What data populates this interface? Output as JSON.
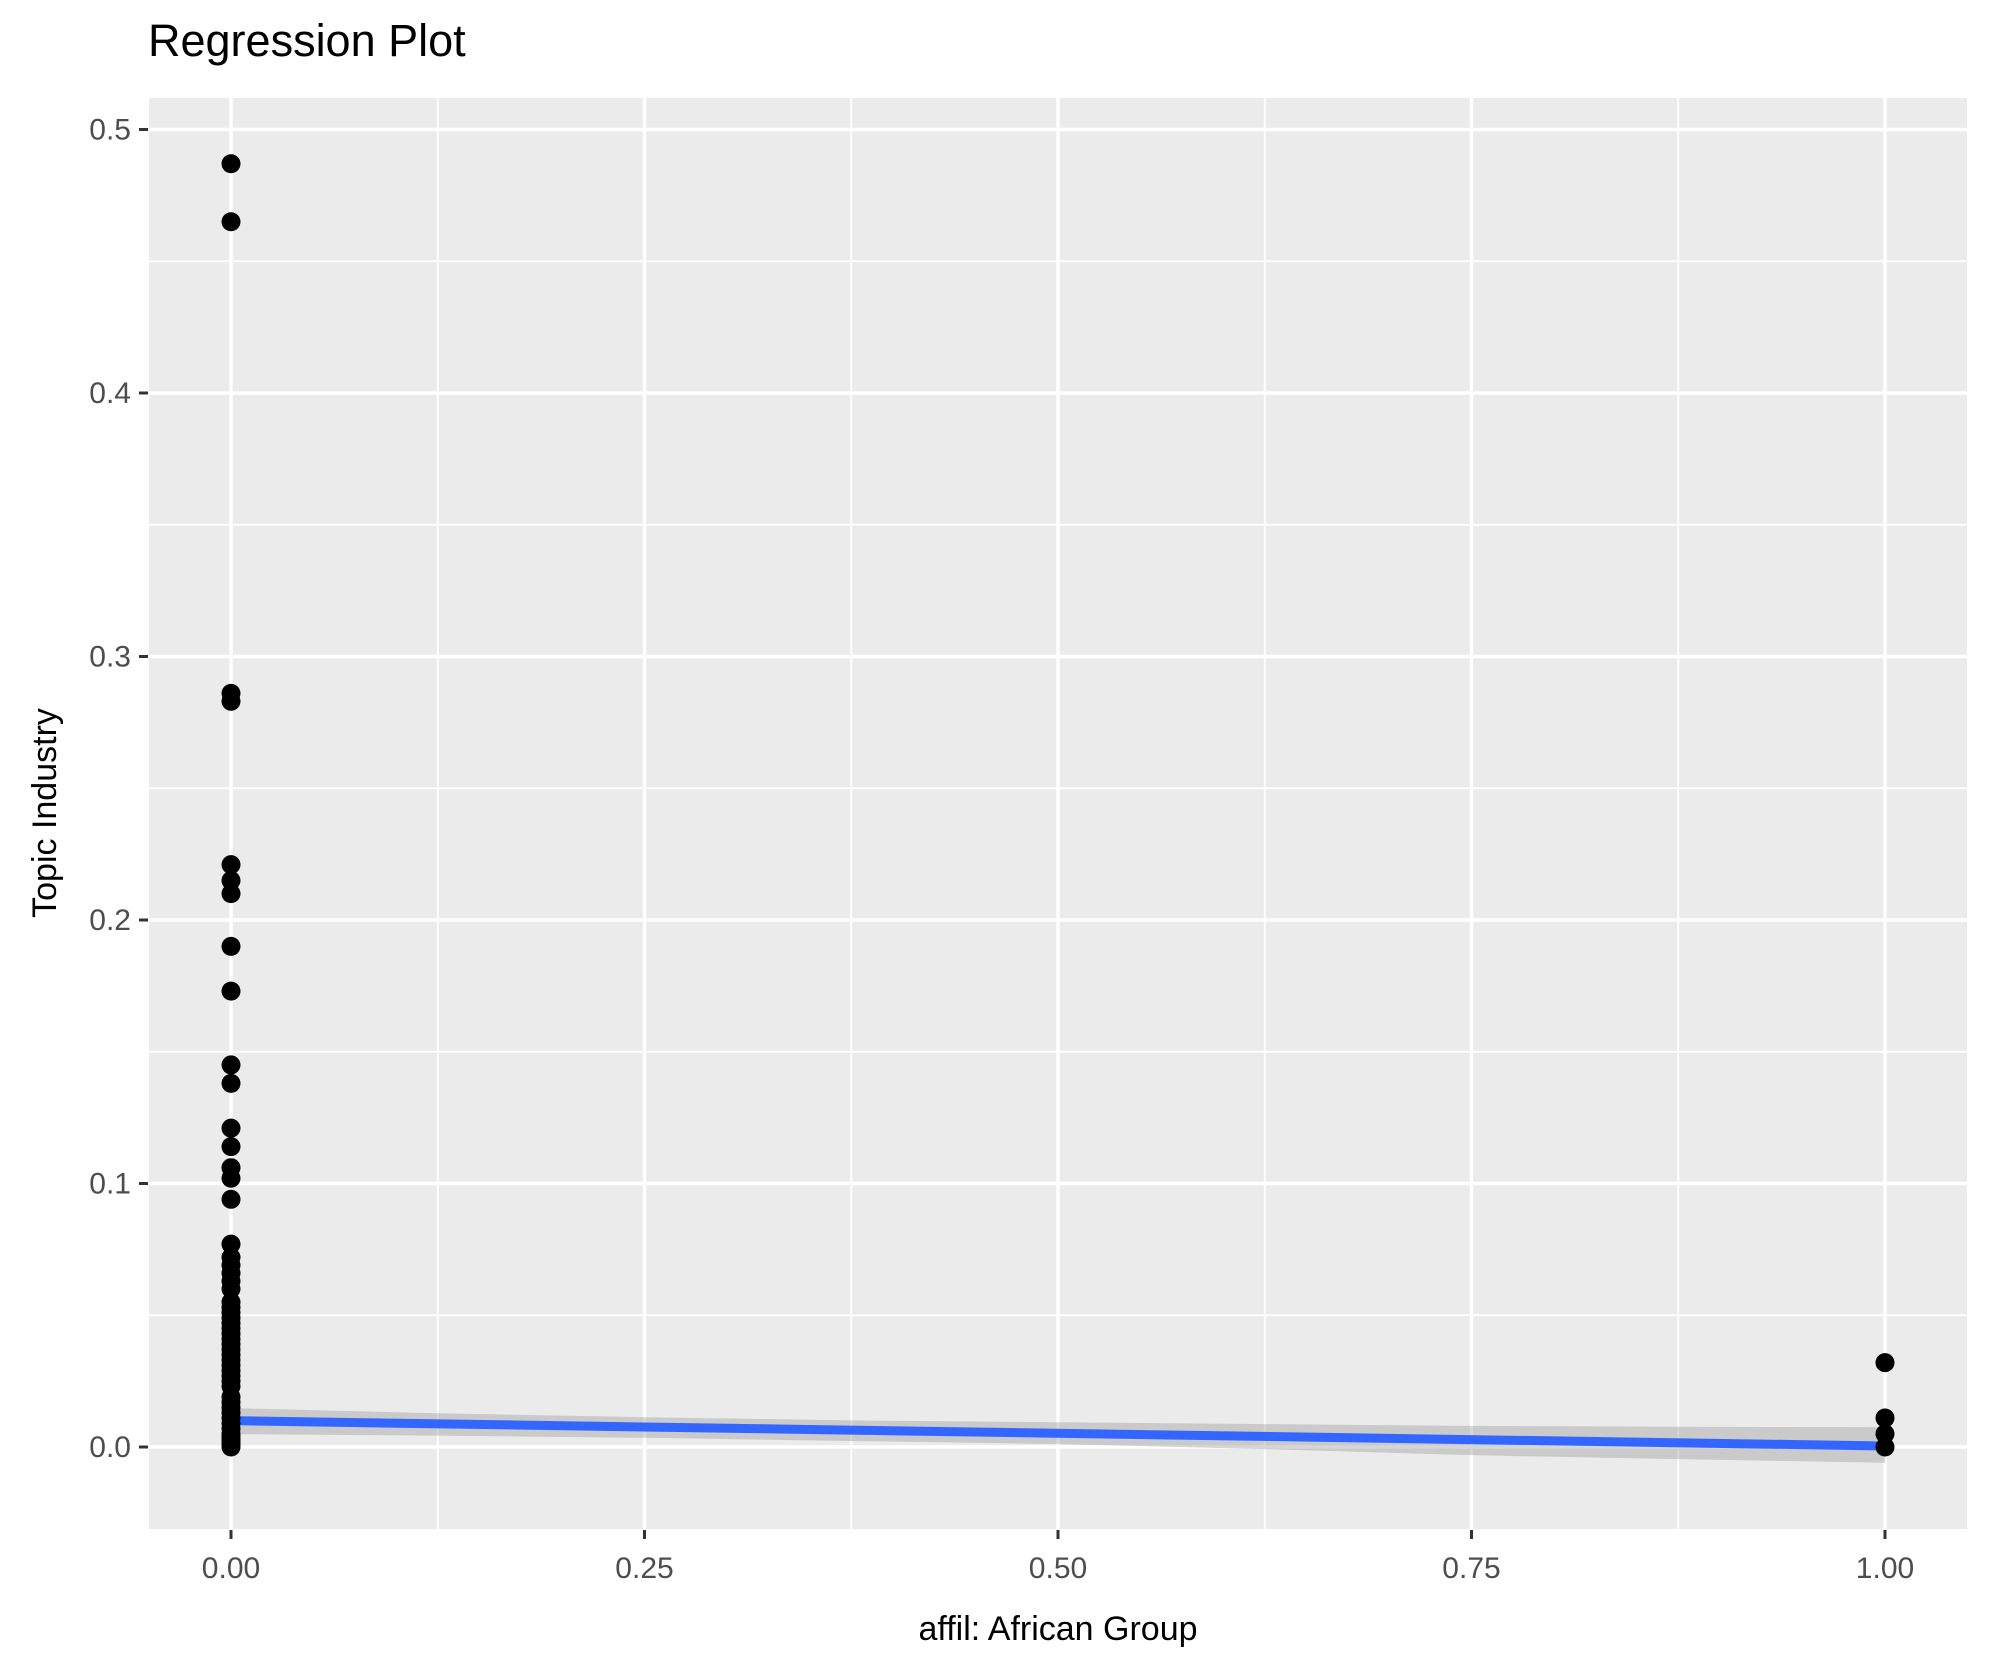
{
  "figure": {
    "title": "Regression Plot",
    "x_axis_label": "affil: African Group",
    "y_axis_label": "Topic Industry"
  },
  "chart_data": {
    "type": "scatter",
    "title": "Regression Plot",
    "xlabel": "affil: African Group",
    "ylabel": "Topic Industry",
    "legend": "none",
    "grid": "on",
    "panel_style": "ggplot2 gray panel with white major and minor gridlines",
    "x_axis": {
      "range_shown": [
        -0.05,
        1.05
      ],
      "ticks": [
        {
          "value": 0.0,
          "label": "0.00"
        },
        {
          "value": 0.25,
          "label": "0.25"
        },
        {
          "value": 0.5,
          "label": "0.50"
        },
        {
          "value": 0.75,
          "label": "0.75"
        },
        {
          "value": 1.0,
          "label": "1.00"
        }
      ]
    },
    "y_axis": {
      "range_shown": [
        -0.031,
        0.512
      ],
      "ticks": [
        {
          "value": 0.0,
          "label": "0.0"
        },
        {
          "value": 0.1,
          "label": "0.1"
        },
        {
          "value": 0.2,
          "label": "0.2"
        },
        {
          "value": 0.3,
          "label": "0.3"
        },
        {
          "value": 0.4,
          "label": "0.4"
        },
        {
          "value": 0.5,
          "label": "0.5"
        }
      ]
    },
    "series": [
      {
        "name": "observations",
        "type": "points",
        "color": "#000000",
        "points": [
          [
            0,
            0.487
          ],
          [
            0,
            0.465
          ],
          [
            0,
            0.286
          ],
          [
            0,
            0.283
          ],
          [
            0,
            0.221
          ],
          [
            0,
            0.215
          ],
          [
            0,
            0.21
          ],
          [
            0,
            0.19
          ],
          [
            0,
            0.173
          ],
          [
            0,
            0.145
          ],
          [
            0,
            0.138
          ],
          [
            0,
            0.121
          ],
          [
            0,
            0.114
          ],
          [
            0,
            0.106
          ],
          [
            0,
            0.102
          ],
          [
            0,
            0.094
          ],
          [
            0,
            0.077
          ],
          [
            0,
            0.072
          ],
          [
            0,
            0.069
          ],
          [
            0,
            0.066
          ],
          [
            0,
            0.063
          ],
          [
            0,
            0.06
          ],
          [
            0,
            0.055
          ],
          [
            0,
            0.053
          ],
          [
            0,
            0.051
          ],
          [
            0,
            0.049
          ],
          [
            0,
            0.047
          ],
          [
            0,
            0.045
          ],
          [
            0,
            0.043
          ],
          [
            0,
            0.041
          ],
          [
            0,
            0.039
          ],
          [
            0,
            0.037
          ],
          [
            0,
            0.035
          ],
          [
            0,
            0.033
          ],
          [
            0,
            0.031
          ],
          [
            0,
            0.029
          ],
          [
            0,
            0.027
          ],
          [
            0,
            0.025
          ],
          [
            0,
            0.023
          ],
          [
            0,
            0.019
          ],
          [
            0,
            0.017
          ],
          [
            0,
            0.015
          ],
          [
            0,
            0.013
          ],
          [
            0,
            0.011
          ],
          [
            0,
            0.009
          ],
          [
            0,
            0.007
          ],
          [
            0,
            0.005
          ],
          [
            0,
            0.004
          ],
          [
            0,
            0.003
          ],
          [
            0,
            0.002
          ],
          [
            0,
            0.001
          ],
          [
            0,
            0.0
          ],
          [
            1,
            0.032
          ],
          [
            1,
            0.011
          ],
          [
            1,
            0.005
          ],
          [
            1,
            0.0
          ]
        ]
      },
      {
        "name": "linear-fit",
        "type": "line",
        "color": "#3366FF",
        "x": [
          0,
          1
        ],
        "y": [
          0.01,
          0.0004
        ]
      },
      {
        "name": "confidence-band",
        "type": "band",
        "color": "#999999",
        "opacity": 0.4,
        "x": [
          0,
          0.125,
          0.25,
          0.375,
          0.5,
          0.625,
          0.75,
          0.875,
          1
        ],
        "upper": [
          0.0148,
          0.0128,
          0.0113,
          0.0101,
          0.0094,
          0.0087,
          0.008,
          0.0077,
          0.0075
        ],
        "lower": [
          0.0049,
          0.0043,
          0.0035,
          0.0023,
          0.0011,
          -0.0008,
          -0.0031,
          -0.0046,
          -0.006
        ]
      }
    ],
    "colors": {
      "panel_background": "#EBEBEB",
      "gridline": "#FFFFFF",
      "point": "#000000",
      "fit_line": "#3366FF",
      "band_fill": "#999999",
      "tick_label": "#4D4D4D",
      "tick_mark": "#333333",
      "text": "#000000",
      "page_background": "#FFFFFF"
    }
  }
}
